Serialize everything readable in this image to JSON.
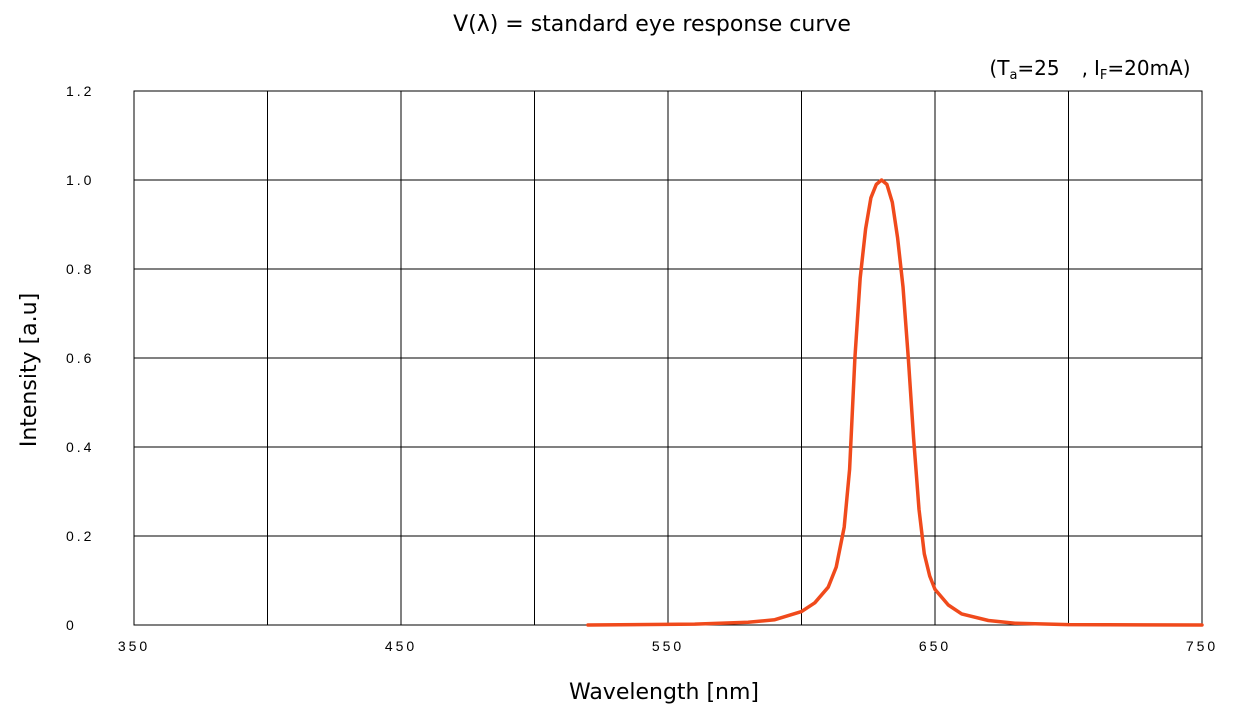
{
  "chart_data": {
    "type": "line",
    "title": "V(λ) = standard eye response curve",
    "conditions": {
      "ta_main": "T",
      "ta_sub": "a",
      "ta_value": "=25",
      "if_main": "I",
      "if_sub": "F",
      "if_value": "=20mA",
      "open": "(",
      "separator": ",",
      "close": ")"
    },
    "xlabel": "Wavelength [nm]",
    "ylabel": "Intensity [a.u]",
    "xlim": [
      350,
      750
    ],
    "ylim": [
      0,
      1.2
    ],
    "x_tick_labels": [
      "350",
      "450",
      "550",
      "650",
      "750"
    ],
    "y_tick_labels": [
      "0",
      "0.2",
      "0.4",
      "0.6",
      "0.8",
      "1.0",
      "1.2"
    ],
    "grid": true,
    "colors": {
      "series": "#f04a1c",
      "grid": "#000000"
    },
    "series": [
      {
        "x": [
          520,
          560,
          580,
          590,
          600,
          605,
          610,
          613,
          616,
          618,
          620,
          622,
          624,
          626,
          628,
          630,
          632,
          634,
          636,
          638,
          640,
          642,
          644,
          646,
          648,
          650,
          655,
          660,
          670,
          680,
          700,
          750
        ],
        "y": [
          0.0,
          0.002,
          0.006,
          0.012,
          0.03,
          0.05,
          0.085,
          0.13,
          0.22,
          0.35,
          0.6,
          0.78,
          0.89,
          0.96,
          0.99,
          1.0,
          0.99,
          0.95,
          0.87,
          0.76,
          0.6,
          0.42,
          0.26,
          0.16,
          0.11,
          0.08,
          0.045,
          0.025,
          0.01,
          0.004,
          0.001,
          0.0
        ]
      }
    ]
  }
}
